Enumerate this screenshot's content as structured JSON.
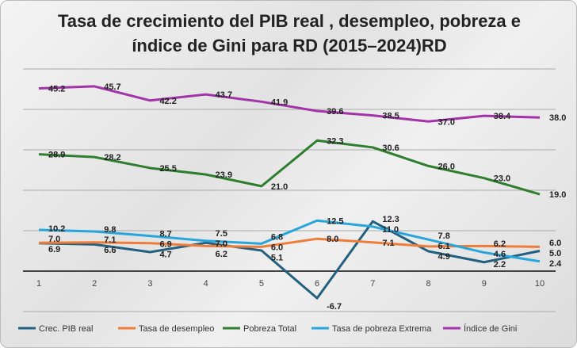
{
  "chart_data": {
    "type": "line",
    "title_line1": "Tasa de crecimiento del PIB real , desempleo, pobreza e",
    "title_line2": "índice de Gini para  RD (2015–2024)RD",
    "x": [
      "1",
      "2",
      "3",
      "4",
      "5",
      "6",
      "7",
      "8",
      "9",
      "10"
    ],
    "ylim": [
      -10,
      50
    ],
    "grid": true,
    "legend": "bottom",
    "series": [
      {
        "name": "Crec. PIB real",
        "color": "#23607f",
        "values": [
          6.9,
          6.6,
          4.7,
          7.0,
          5.1,
          -6.7,
          12.3,
          4.9,
          2.2,
          5.0
        ]
      },
      {
        "name": "Tasa de desempleo",
        "color": "#ef7d3a",
        "values": [
          7.0,
          7.1,
          6.9,
          6.2,
          6.0,
          8.0,
          7.1,
          6.1,
          6.2,
          6.0
        ]
      },
      {
        "name": "Pobreza Total",
        "color": "#2f7d2f",
        "values": [
          28.9,
          28.2,
          25.5,
          23.9,
          21.0,
          32.3,
          30.6,
          26.0,
          23.0,
          19.0
        ]
      },
      {
        "name": "Tasa de pobreza Extrema",
        "color": "#27a6dc",
        "values": [
          10.2,
          9.8,
          8.7,
          7.5,
          6.8,
          12.5,
          11.0,
          7.8,
          4.6,
          2.4
        ]
      },
      {
        "name": "Índice de Gini",
        "color": "#a233a8",
        "values": [
          45.2,
          45.7,
          42.2,
          43.7,
          41.9,
          39.6,
          38.5,
          37.0,
          38.4,
          38.0
        ]
      }
    ]
  }
}
